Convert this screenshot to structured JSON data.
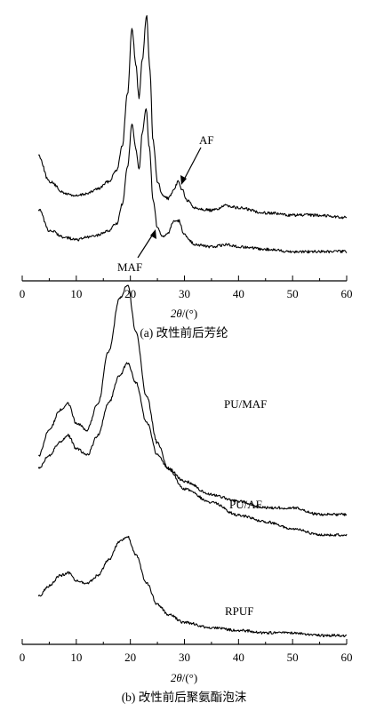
{
  "chart_data": [
    {
      "type": "line",
      "caption": "(a) 改性前后芳纶",
      "xlabel_symbol": "2θ",
      "xlabel_unit": "/(°)",
      "xlim": [
        0,
        60
      ],
      "xticks": [
        0,
        10,
        20,
        30,
        40,
        50,
        60
      ],
      "series": [
        {
          "name": "AF",
          "x": [
            3,
            5,
            8,
            10,
            12,
            14,
            16,
            17.5,
            18.5,
            19.5,
            20.3,
            21.0,
            21.6,
            22.2,
            23.0,
            23.6,
            24.2,
            25.0,
            26.0,
            27.0,
            28.0,
            28.8,
            29.5,
            30.5,
            32,
            35,
            38,
            40,
            45,
            50,
            55,
            60
          ],
          "y": [
            0.42,
            0.31,
            0.26,
            0.25,
            0.26,
            0.28,
            0.31,
            0.36,
            0.46,
            0.68,
            0.95,
            0.8,
            0.66,
            0.82,
            1.0,
            0.78,
            0.48,
            0.31,
            0.25,
            0.24,
            0.27,
            0.31,
            0.28,
            0.23,
            0.2,
            0.19,
            0.21,
            0.2,
            0.18,
            0.17,
            0.17,
            0.16
          ]
        },
        {
          "name": "MAF",
          "x": [
            3,
            5,
            8,
            10,
            12,
            14,
            16,
            17.5,
            18.5,
            19.5,
            20.3,
            21.0,
            21.6,
            22.2,
            22.9,
            23.5,
            24.2,
            25.0,
            26.0,
            27.0,
            28.0,
            29.0,
            30.0,
            32,
            35,
            38,
            40,
            45,
            50,
            55,
            60
          ],
          "y": [
            0.24,
            0.15,
            0.12,
            0.11,
            0.12,
            0.13,
            0.15,
            0.18,
            0.26,
            0.42,
            0.6,
            0.5,
            0.41,
            0.56,
            0.67,
            0.5,
            0.28,
            0.16,
            0.12,
            0.14,
            0.19,
            0.19,
            0.13,
            0.09,
            0.08,
            0.09,
            0.08,
            0.07,
            0.06,
            0.06,
            0.06
          ]
        }
      ]
    },
    {
      "type": "line",
      "caption": "(b) 改性前后聚氨酯泡沫",
      "xlabel_symbol": "2θ",
      "xlabel_unit": "/(°)",
      "xlim": [
        0,
        60
      ],
      "xticks": [
        0,
        10,
        20,
        30,
        40,
        50,
        60
      ],
      "series": [
        {
          "name": "PU/MAF",
          "x": [
            3,
            5,
            7,
            8.5,
            10,
            12,
            14,
            16,
            18,
            19.5,
            21,
            23,
            25,
            27,
            30,
            35,
            40,
            45,
            50,
            55,
            60
          ],
          "y": [
            0.86,
            0.88,
            0.9,
            0.91,
            0.89,
            0.88,
            0.91,
            0.96,
            1.0,
            1.02,
            0.99,
            0.93,
            0.88,
            0.86,
            0.84,
            0.82,
            0.81,
            0.8,
            0.8,
            0.79,
            0.79
          ]
        },
        {
          "name": "PU/AF",
          "x": [
            3,
            5,
            7,
            8.5,
            10,
            12,
            14,
            16,
            18,
            19.5,
            21,
            23,
            25,
            27,
            30,
            35,
            40,
            45,
            50,
            55,
            60
          ],
          "y": [
            0.52,
            0.56,
            0.59,
            0.6,
            0.57,
            0.56,
            0.6,
            0.68,
            0.76,
            0.78,
            0.71,
            0.61,
            0.54,
            0.5,
            0.47,
            0.45,
            0.43,
            0.42,
            0.41,
            0.4,
            0.4
          ]
        },
        {
          "name": "RPUF",
          "x": [
            3,
            5,
            7,
            8.5,
            10,
            12,
            14,
            16,
            18,
            19.5,
            21,
            23,
            25,
            27,
            30,
            35,
            40,
            45,
            50,
            55,
            60
          ],
          "y": [
            0.15,
            0.19,
            0.23,
            0.24,
            0.21,
            0.2,
            0.23,
            0.29,
            0.36,
            0.38,
            0.31,
            0.2,
            0.12,
            0.08,
            0.05,
            0.03,
            0.02,
            0.01,
            0.01,
            0.0,
            0.0
          ]
        }
      ]
    }
  ]
}
